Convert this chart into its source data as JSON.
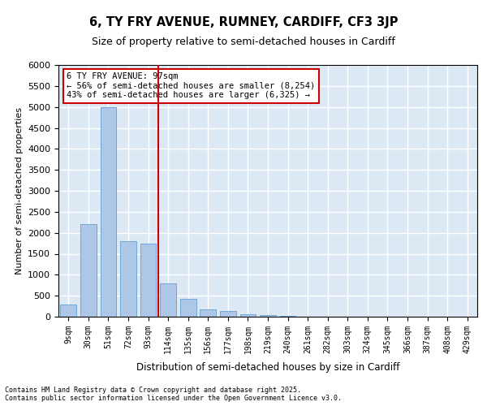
{
  "title": "6, TY FRY AVENUE, RUMNEY, CARDIFF, CF3 3JP",
  "subtitle": "Size of property relative to semi-detached houses in Cardiff",
  "xlabel": "Distribution of semi-detached houses by size in Cardiff",
  "ylabel": "Number of semi-detached properties",
  "categories": [
    "9sqm",
    "30sqm",
    "51sqm",
    "72sqm",
    "93sqm",
    "114sqm",
    "135sqm",
    "156sqm",
    "177sqm",
    "198sqm",
    "219sqm",
    "240sqm",
    "261sqm",
    "282sqm",
    "303sqm",
    "324sqm",
    "345sqm",
    "366sqm",
    "387sqm",
    "408sqm",
    "429sqm"
  ],
  "values": [
    300,
    2200,
    5000,
    1800,
    1750,
    800,
    420,
    170,
    130,
    50,
    30,
    10,
    0,
    0,
    0,
    0,
    0,
    0,
    0,
    0,
    0
  ],
  "bar_color": "#aec6e8",
  "bar_edgecolor": "#6fa8d4",
  "annotation_title": "6 TY FRY AVENUE: 97sqm",
  "annotation_line1": "← 56% of semi-detached houses are smaller (8,254)",
  "annotation_line2": "43% of semi-detached houses are larger (6,325) →",
  "vline_color": "#cc0000",
  "annotation_box_edgecolor": "#cc0000",
  "ylim": [
    0,
    6000
  ],
  "background_color": "#dce9f5",
  "grid_color": "#ffffff",
  "footer_line1": "Contains HM Land Registry data © Crown copyright and database right 2025.",
  "footer_line2": "Contains public sector information licensed under the Open Government Licence v3.0."
}
